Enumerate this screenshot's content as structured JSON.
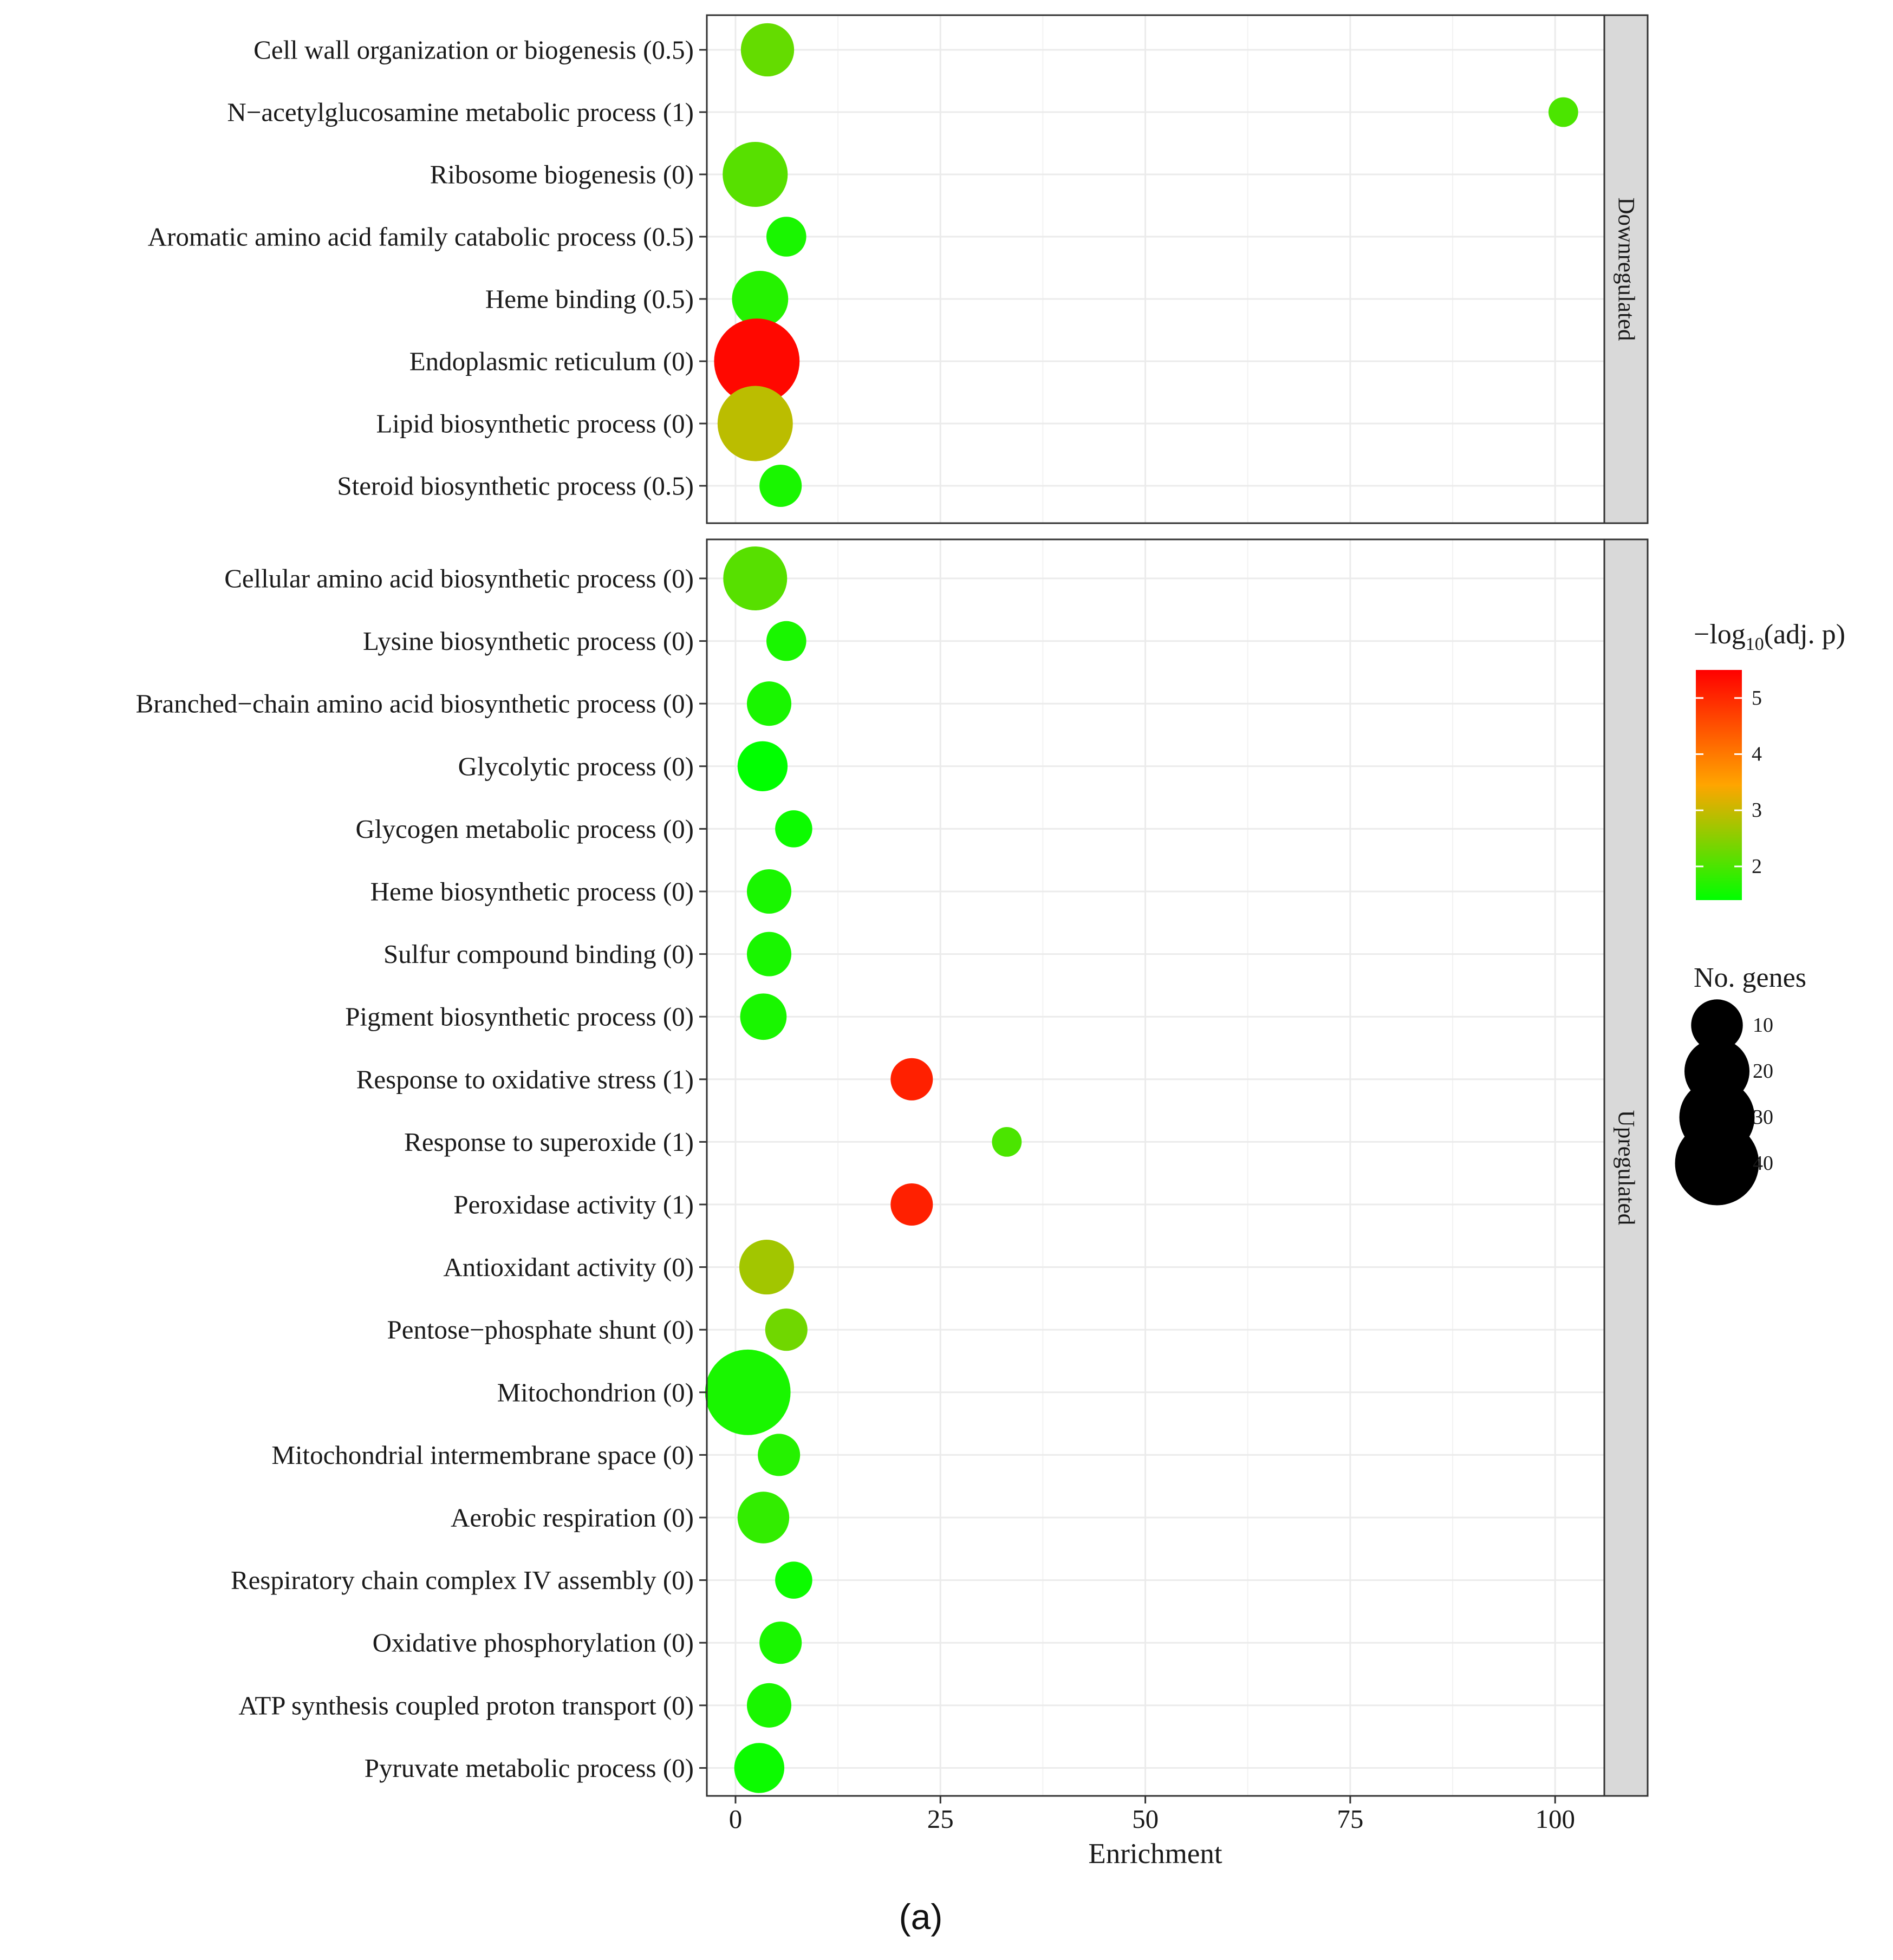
{
  "chart_data": {
    "type": "scatter",
    "xlabel": "Enrichment",
    "xlim": [
      -3.5,
      106
    ],
    "x_ticks": [
      0,
      25,
      50,
      75,
      100
    ],
    "grid": true,
    "caption": "(a)",
    "panels": [
      {
        "name": "Downregulated",
        "points": [
          {
            "label": "Cell wall organization or biogenesis (0.5)",
            "enrichment": 3.9,
            "neg_log10_adj_p": 2.2,
            "genes": 11
          },
          {
            "label": "N−acetylglucosamine metabolic process (1)",
            "enrichment": 101.0,
            "neg_log10_adj_p": 2.0,
            "genes": 1
          },
          {
            "label": "Ribosome biogenesis (0)",
            "enrichment": 2.4,
            "neg_log10_adj_p": 2.1,
            "genes": 20
          },
          {
            "label": "Aromatic amino acid family catabolic process (0.5)",
            "enrichment": 6.2,
            "neg_log10_adj_p": 1.6,
            "genes": 4
          },
          {
            "label": "Heme binding (0.5)",
            "enrichment": 3.0,
            "neg_log10_adj_p": 1.7,
            "genes": 13
          },
          {
            "label": "Endoplasmic reticulum (0)",
            "enrichment": 2.6,
            "neg_log10_adj_p": 5.4,
            "genes": 42
          },
          {
            "label": "Lipid biosynthetic process (0)",
            "enrichment": 2.4,
            "neg_log10_adj_p": 2.9,
            "genes": 30
          },
          {
            "label": "Steroid biosynthetic process (0.5)",
            "enrichment": 5.5,
            "neg_log10_adj_p": 1.6,
            "genes": 5
          }
        ]
      },
      {
        "name": "Upregulated",
        "points": [
          {
            "label": "Cellular amino acid biosynthetic process (0)",
            "enrichment": 2.4,
            "neg_log10_adj_p": 2.1,
            "genes": 19
          },
          {
            "label": "Lysine biosynthetic process (0)",
            "enrichment": 6.2,
            "neg_log10_adj_p": 1.6,
            "genes": 4
          },
          {
            "label": "Branched−chain amino acid biosynthetic process (0)",
            "enrichment": 4.1,
            "neg_log10_adj_p": 1.6,
            "genes": 6
          },
          {
            "label": "Glycolytic process (0)",
            "enrichment": 3.3,
            "neg_log10_adj_p": 1.4,
            "genes": 9
          },
          {
            "label": "Glycogen metabolic process (0)",
            "enrichment": 7.1,
            "neg_log10_adj_p": 1.5,
            "genes": 3
          },
          {
            "label": "Heme biosynthetic process (0)",
            "enrichment": 4.1,
            "neg_log10_adj_p": 1.6,
            "genes": 6
          },
          {
            "label": "Sulfur compound binding (0)",
            "enrichment": 4.1,
            "neg_log10_adj_p": 1.6,
            "genes": 6
          },
          {
            "label": "Pigment biosynthetic process (0)",
            "enrichment": 3.4,
            "neg_log10_adj_p": 1.6,
            "genes": 7
          },
          {
            "label": "Response to oxidative stress (1)",
            "enrichment": 21.5,
            "neg_log10_adj_p": 5.1,
            "genes": 5
          },
          {
            "label": "Response to superoxide (1)",
            "enrichment": 33.1,
            "neg_log10_adj_p": 2.0,
            "genes": 1
          },
          {
            "label": "Peroxidase activity (1)",
            "enrichment": 21.5,
            "neg_log10_adj_p": 5.1,
            "genes": 5
          },
          {
            "label": "Antioxidant activity (0)",
            "enrichment": 3.8,
            "neg_log10_adj_p": 2.7,
            "genes": 12
          },
          {
            "label": "Pentose−phosphate shunt (0)",
            "enrichment": 6.2,
            "neg_log10_adj_p": 2.3,
            "genes": 5
          },
          {
            "label": "Mitochondrion (0)",
            "enrichment": 1.5,
            "neg_log10_adj_p": 1.6,
            "genes": 42
          },
          {
            "label": "Mitochondrial intermembrane space (0)",
            "enrichment": 5.3,
            "neg_log10_adj_p": 1.7,
            "genes": 5
          },
          {
            "label": "Aerobic respiration (0)",
            "enrichment": 3.4,
            "neg_log10_adj_p": 1.8,
            "genes": 10
          },
          {
            "label": "Respiratory chain complex IV assembly (0)",
            "enrichment": 7.1,
            "neg_log10_adj_p": 1.5,
            "genes": 3
          },
          {
            "label": "Oxidative phosphorylation (0)",
            "enrichment": 5.5,
            "neg_log10_adj_p": 1.6,
            "genes": 5
          },
          {
            "label": "ATP synthesis coupled proton transport (0)",
            "enrichment": 4.1,
            "neg_log10_adj_p": 1.6,
            "genes": 6
          },
          {
            "label": "Pyruvate metabolic process (0)",
            "enrichment": 2.9,
            "neg_log10_adj_p": 1.5,
            "genes": 9
          }
        ]
      }
    ],
    "color_legend": {
      "title_prefix": "−log",
      "title_subscript": "10",
      "title_suffix": "(adj. p)",
      "range": [
        1.4,
        5.5
      ],
      "ticks": [
        "2",
        "3",
        "4",
        "5"
      ],
      "tick_values": [
        2,
        3,
        4,
        5
      ],
      "gradient": [
        "#00ff00",
        "#ffa500",
        "#ff0000"
      ]
    },
    "size_legend": {
      "title": "No. genes",
      "values": [
        10,
        20,
        30,
        40
      ],
      "labels": [
        "10",
        "20",
        "30",
        "40"
      ],
      "color": "#000000"
    }
  }
}
